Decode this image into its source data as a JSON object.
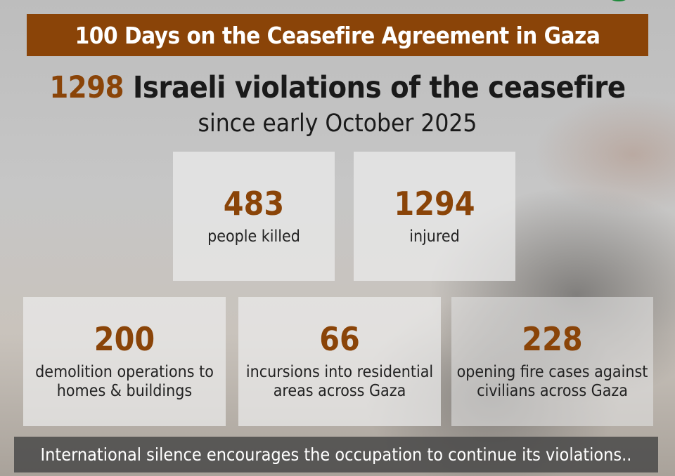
{
  "title": "100 Days on the Ceasefire Agreement in Gaza",
  "headline": {
    "number": "1298",
    "text": " Israeli violations of the ceasefire"
  },
  "subtitle": "since early October 2025",
  "stats": [
    {
      "value": "483",
      "label": "people killed"
    },
    {
      "value": "1294",
      "label": "injured"
    },
    {
      "value": "200",
      "label": "demolition operations to homes & buildings"
    },
    {
      "value": "66",
      "label": "incursions into residential areas across Gaza"
    },
    {
      "value": "228",
      "label": "opening fire cases against civilians across Gaza"
    }
  ],
  "footer": "International silence encourages the occupation to continue its violations..",
  "colors": {
    "accent": "#8a4408",
    "footer_bg": "#464646"
  }
}
